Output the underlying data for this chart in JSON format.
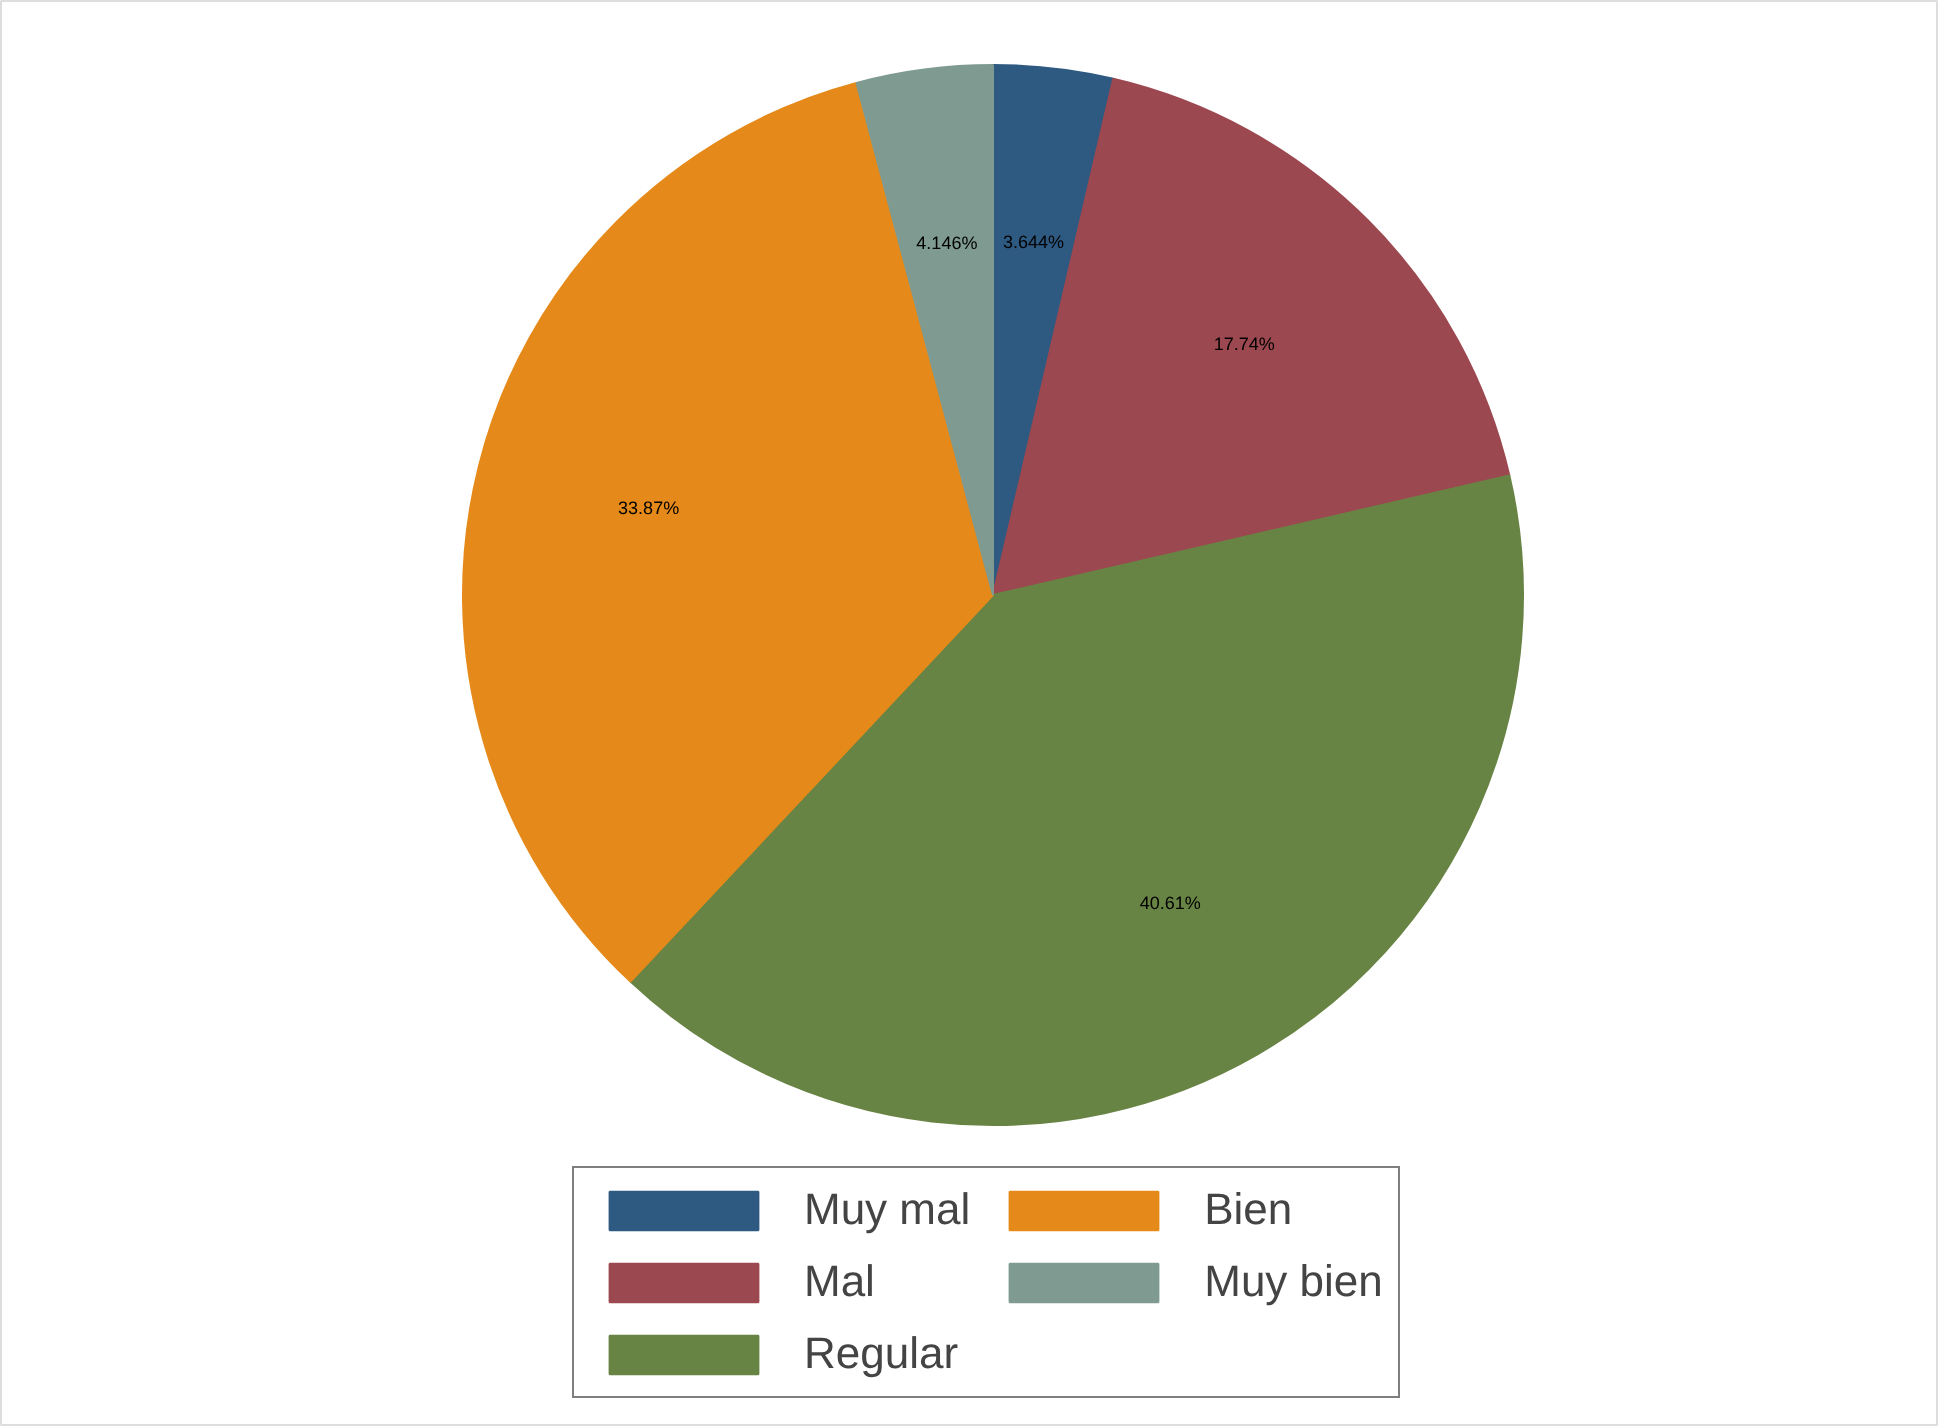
{
  "chart_data": {
    "type": "pie",
    "categories": [
      "Muy mal",
      "Mal",
      "Regular",
      "Bien",
      "Muy bien"
    ],
    "values": [
      3.644,
      17.74,
      40.61,
      33.87,
      4.146
    ],
    "colors": [
      "#2e5a82",
      "#9c4850",
      "#688444",
      "#e58a1a",
      "#7f9b91"
    ],
    "value_labels": [
      "3.644%",
      "17.74%",
      "40.61%",
      "33.87%",
      "4.146%"
    ],
    "legend": "bottom"
  }
}
